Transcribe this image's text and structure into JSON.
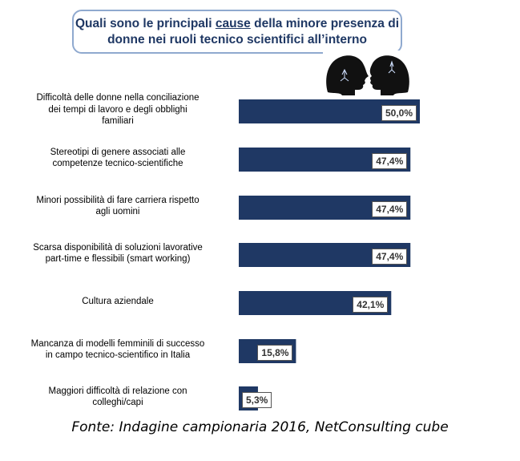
{
  "title": {
    "line1_prefix": "Quali sono le principali ",
    "line1_underlined": "cause",
    "line1_suffix": " della minore presenza di",
    "line2": "donne nei ruoli tecnico scientifici all’interno"
  },
  "chart_data": {
    "type": "bar",
    "orientation": "horizontal",
    "categories": [
      "Difficoltà delle donne nella conciliazione dei tempi di lavoro e degli obblighi familiari",
      "Stereotipi di genere associati alle competenze tecnico-scientifiche",
      "Minori possibilità di fare carriera rispetto agli uomini",
      "Scarsa disponibilità di soluzioni lavorative part-time e flessibili (smart working)",
      "Cultura aziendale",
      "Mancanza di modelli femminili di successo in campo tecnico-scientifico in Italia",
      "Maggiori difficoltà di relazione con colleghi/capi"
    ],
    "category_lines": [
      [
        "Difficoltà delle donne nella conciliazione",
        "dei tempi di lavoro e degli obblighi",
        "familiari"
      ],
      [
        "Stereotipi di genere associati alle",
        "competenze tecnico-scientifiche"
      ],
      [
        "Minori possibilità di fare carriera rispetto",
        "agli uomini"
      ],
      [
        "Scarsa disponibilità di soluzioni lavorative",
        "part-time e flessibili (smart working)"
      ],
      [
        "Cultura aziendale"
      ],
      [
        "Mancanza di modelli femminili di successo",
        "in campo tecnico-scientifico in Italia"
      ],
      [
        "Maggiori difficoltà di relazione con",
        "colleghi/capi"
      ]
    ],
    "values": [
      50.0,
      47.4,
      47.4,
      47.4,
      42.1,
      15.8,
      5.3
    ],
    "value_labels": [
      "50,0%",
      "47,4%",
      "47,4%",
      "47,4%",
      "42,1%",
      "15,8%",
      "5,3%"
    ],
    "xlim": [
      0,
      50
    ],
    "bar_color": "#1f3864",
    "grid": false,
    "legend": "none"
  },
  "icon": "two-heads-icon",
  "footer": "Fonte: Indagine campionaria 2016, NetConsulting cube"
}
